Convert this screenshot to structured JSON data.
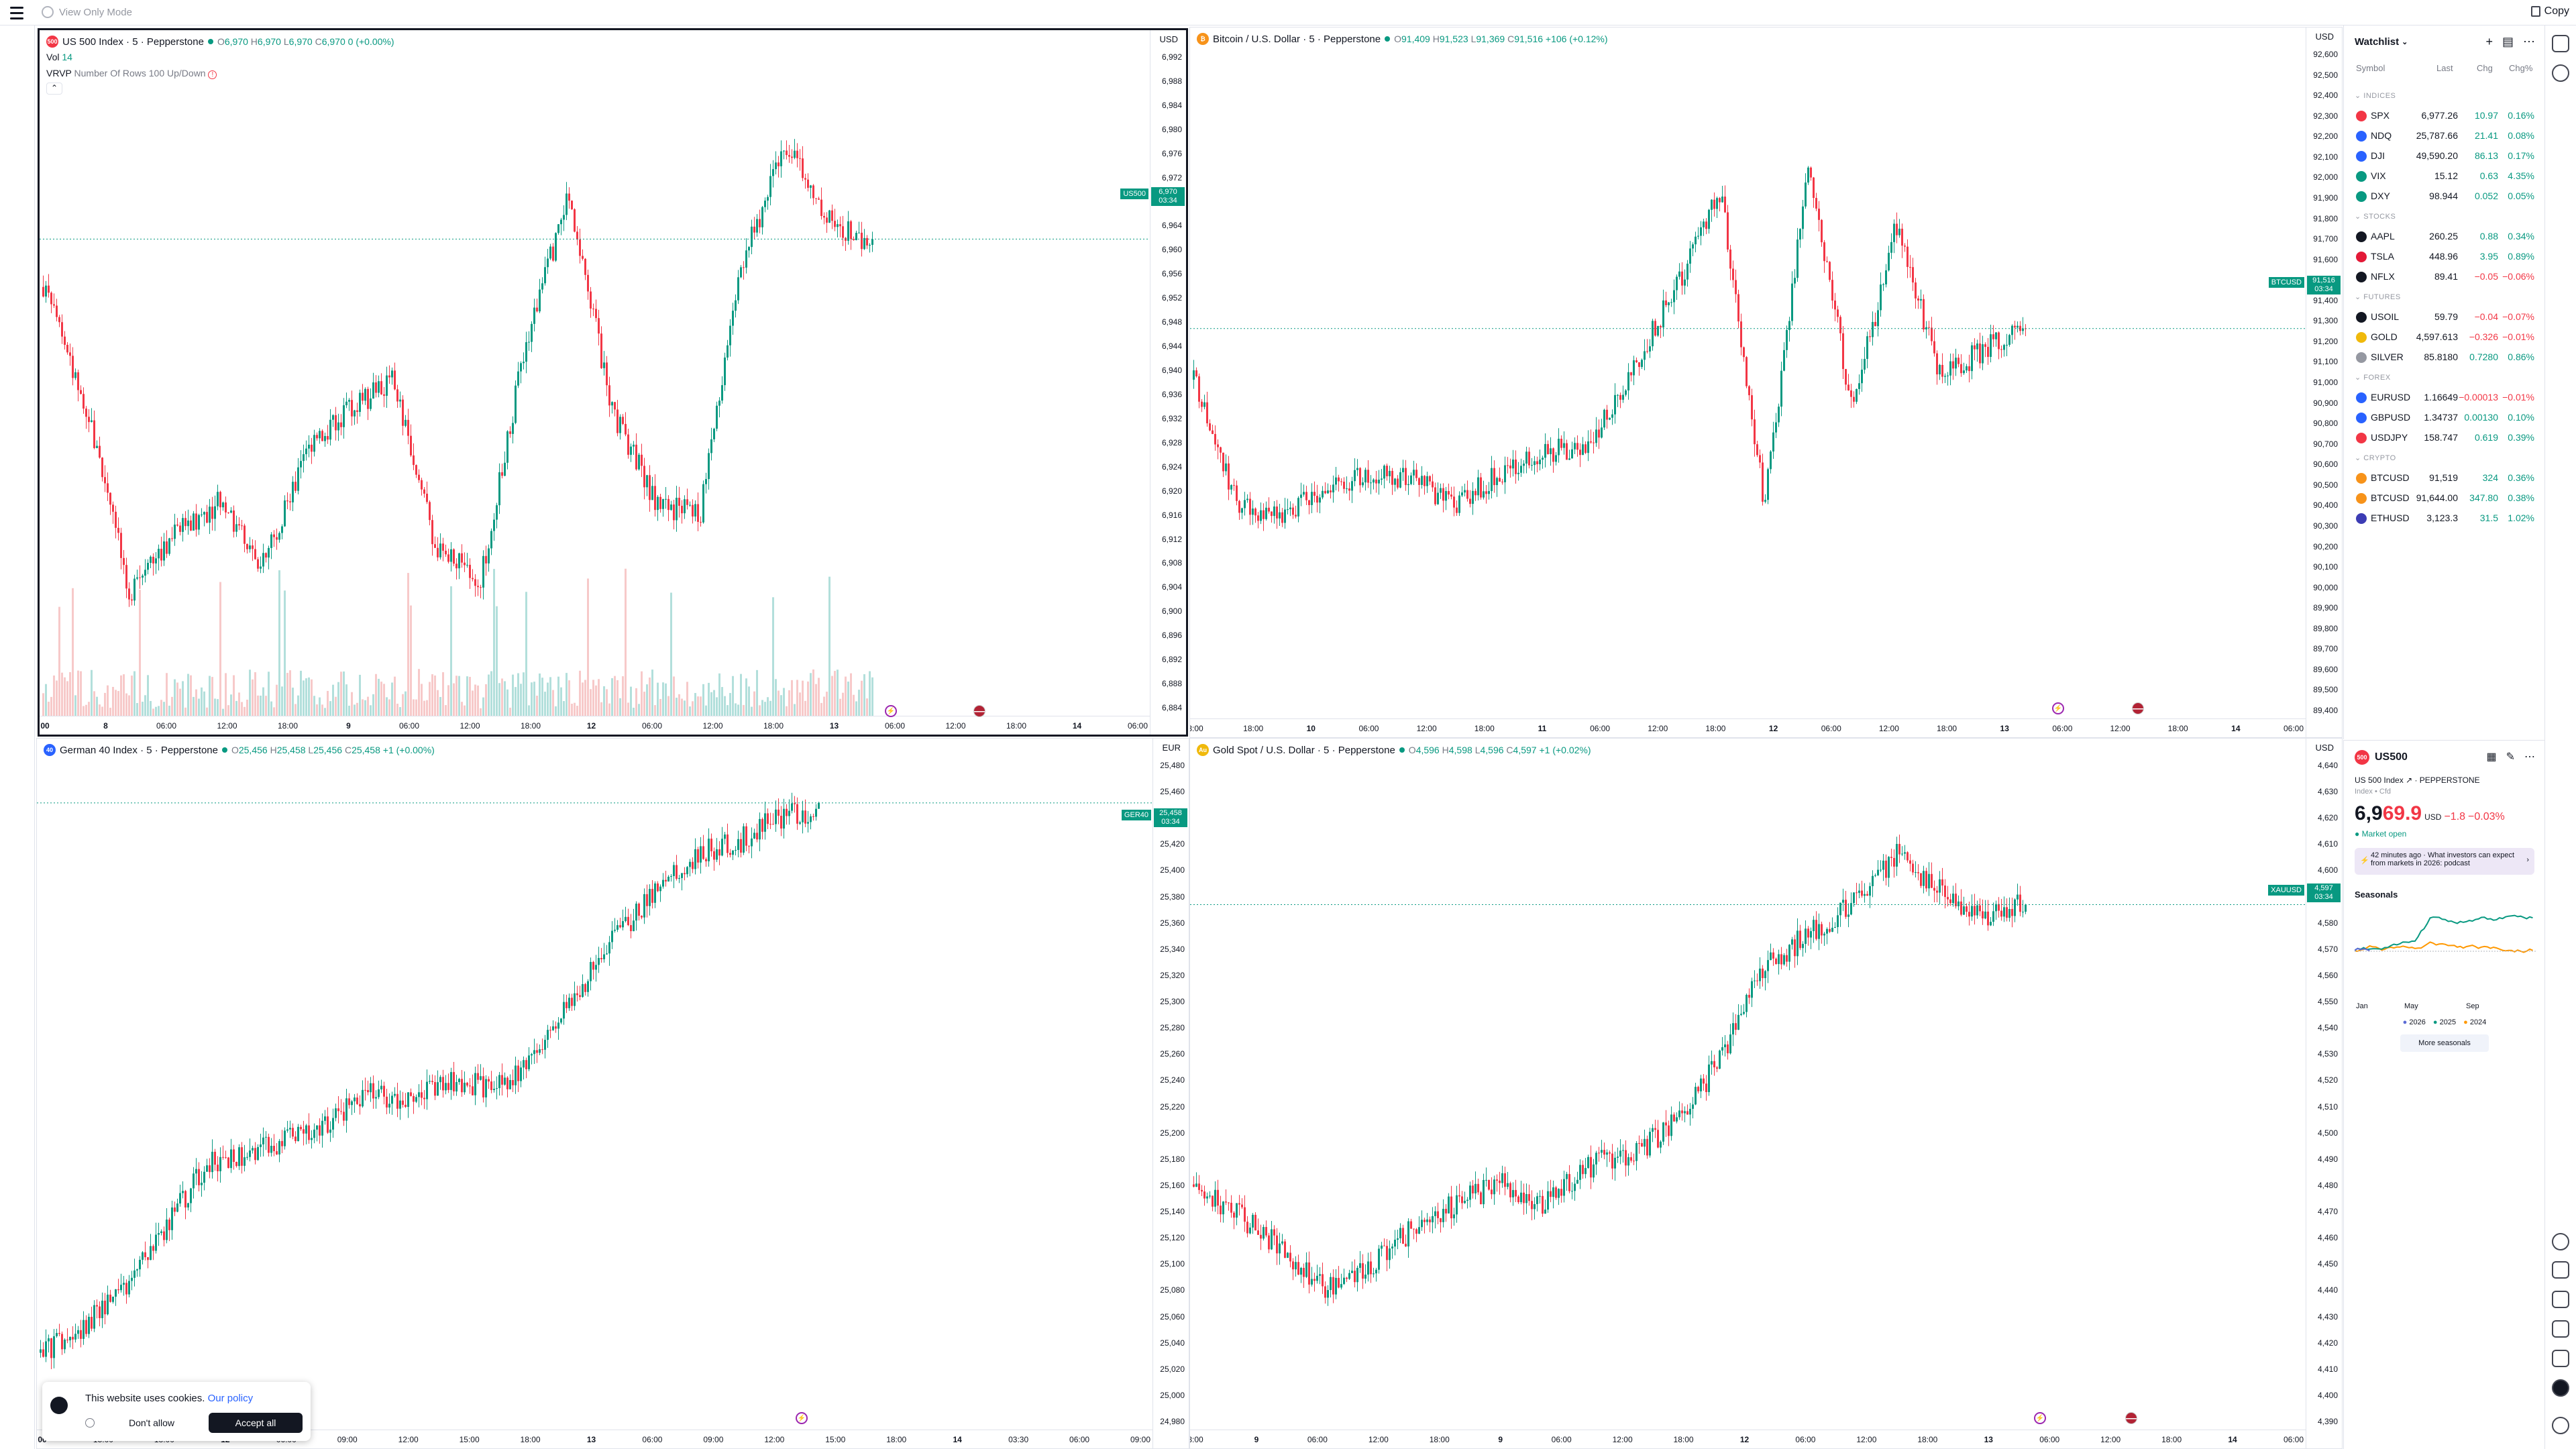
{
  "topbar": {
    "view_only": "View Only Mode",
    "copy": "Copy"
  },
  "panes": [
    {
      "id": "spx",
      "title": "US 500 Index · 5 · Pepperstone",
      "icon_label": "500",
      "icon_color": "#f23645",
      "ohlc": {
        "o": "6,970",
        "h": "6,970",
        "l": "6,970",
        "c": "6,970",
        "chg": "0 (+0.00%)"
      },
      "vol_label": "Vol",
      "vol_value": "14",
      "vrvp_label": "VRVP",
      "vrvp_text": "Number Of Rows 100 Up/Down",
      "currency": "USD",
      "price_ticks": [
        "6,992",
        "6,988",
        "6,984",
        "6,980",
        "6,976",
        "6,972",
        "6,968",
        "6,964",
        "6,960",
        "6,956",
        "6,952",
        "6,948",
        "6,944",
        "6,940",
        "6,936",
        "6,932",
        "6,928",
        "6,924",
        "6,920",
        "6,916",
        "6,912",
        "6,908",
        "6,904",
        "6,900",
        "6,896",
        "6,892",
        "6,888",
        "6,884"
      ],
      "time_ticks": [
        "00",
        "8",
        "06:00",
        "12:00",
        "18:00",
        "9",
        "06:00",
        "12:00",
        "18:00",
        "12",
        "06:00",
        "12:00",
        "18:00",
        "13",
        "06:00",
        "12:00",
        "18:00",
        "14",
        "06:00"
      ],
      "sym_tag": "US500",
      "price_tag": "6,970",
      "countdown": "03:34"
    },
    {
      "id": "btc",
      "title": "Bitcoin / U.S. Dollar · 5 · Pepperstone",
      "icon_label": "₿",
      "icon_color": "#f7931a",
      "ohlc": {
        "o": "91,409",
        "h": "91,523",
        "l": "91,369",
        "c": "91,516",
        "chg": "+106 (+0.12%)"
      },
      "currency": "USD",
      "price_ticks": [
        "92,600",
        "92,500",
        "92,400",
        "92,300",
        "92,200",
        "92,100",
        "92,000",
        "91,900",
        "91,800",
        "91,700",
        "91,600",
        "91,500",
        "91,400",
        "91,300",
        "91,200",
        "91,100",
        "91,000",
        "90,900",
        "90,800",
        "90,700",
        "90,600",
        "90,500",
        "90,400",
        "90,300",
        "90,200",
        "90,100",
        "90,000",
        "89,900",
        "89,800",
        "89,700",
        "89,600",
        "89,500",
        "89,400"
      ],
      "time_ticks": [
        "3:00",
        "18:00",
        "10",
        "06:00",
        "12:00",
        "18:00",
        "11",
        "06:00",
        "12:00",
        "18:00",
        "12",
        "06:00",
        "12:00",
        "18:00",
        "13",
        "06:00",
        "12:00",
        "18:00",
        "14",
        "06:00"
      ],
      "sym_tag": "BTCUSD",
      "price_tag": "91,516",
      "countdown": "03:34"
    },
    {
      "id": "dax",
      "title": "German 40 Index · 5 · Pepperstone",
      "icon_label": "40",
      "icon_color": "#2962ff",
      "ohlc": {
        "o": "25,456",
        "h": "25,458",
        "l": "25,456",
        "c": "25,458",
        "chg": "+1 (+0.00%)"
      },
      "currency": "EUR",
      "price_ticks": [
        "25,480",
        "25,460",
        "25,440",
        "25,420",
        "25,400",
        "25,380",
        "25,360",
        "25,340",
        "25,320",
        "25,300",
        "25,280",
        "25,260",
        "25,240",
        "25,220",
        "25,200",
        "25,180",
        "25,160",
        "25,140",
        "25,120",
        "25,100",
        "25,080",
        "25,060",
        "25,040",
        "25,020",
        "25,000",
        "24,980"
      ],
      "time_ticks": [
        "00",
        "15:00",
        "18:00",
        "12",
        "06:00",
        "09:00",
        "12:00",
        "15:00",
        "18:00",
        "13",
        "06:00",
        "09:00",
        "12:00",
        "15:00",
        "18:00",
        "14",
        "03:30",
        "06:00",
        "09:00"
      ],
      "sym_tag": "GER40",
      "price_tag": "25,458",
      "countdown": "03:34"
    },
    {
      "id": "gold",
      "title": "Gold Spot / U.S. Dollar · 5 · Pepperstone",
      "icon_label": "Au",
      "icon_color": "#f0b90b",
      "ohlc": {
        "o": "4,596",
        "h": "4,598",
        "l": "4,596",
        "c": "4,597",
        "chg": "+1 (+0.02%)"
      },
      "currency": "USD",
      "price_ticks": [
        "4,640",
        "4,630",
        "4,620",
        "4,610",
        "4,600",
        "4,590",
        "4,580",
        "4,570",
        "4,560",
        "4,550",
        "4,540",
        "4,530",
        "4,520",
        "4,510",
        "4,500",
        "4,490",
        "4,480",
        "4,470",
        "4,460",
        "4,450",
        "4,440",
        "4,430",
        "4,420",
        "4,410",
        "4,400",
        "4,390"
      ],
      "time_ticks": [
        "3:00",
        "9",
        "06:00",
        "12:00",
        "18:00",
        "9",
        "06:00",
        "12:00",
        "18:00",
        "12",
        "06:00",
        "12:00",
        "18:00",
        "13",
        "06:00",
        "12:00",
        "18:00",
        "14",
        "06:00"
      ],
      "sym_tag": "XAUUSD",
      "price_tag": "4,597",
      "countdown": "03:34"
    }
  ],
  "watchlist": {
    "title": "Watchlist",
    "columns": {
      "symbol": "Symbol",
      "last": "Last",
      "chg": "Chg",
      "chgp": "Chg%"
    },
    "sections": [
      {
        "name": "INDICES",
        "rows": [
          {
            "sym": "SPX",
            "last": "6,977.26",
            "chg": "10.97",
            "chgp": "0.16%",
            "dir": "up",
            "color": "#f23645"
          },
          {
            "sym": "NDQ",
            "last": "25,787.66",
            "chg": "21.41",
            "chgp": "0.08%",
            "dir": "up",
            "color": "#2962ff"
          },
          {
            "sym": "DJI",
            "last": "49,590.20",
            "chg": "86.13",
            "chgp": "0.17%",
            "dir": "up",
            "color": "#2962ff"
          },
          {
            "sym": "VIX",
            "last": "15.12",
            "chg": "0.63",
            "chgp": "4.35%",
            "dir": "up",
            "color": "#089981"
          },
          {
            "sym": "DXY",
            "last": "98.944",
            "chg": "0.052",
            "chgp": "0.05%",
            "dir": "up",
            "color": "#089981"
          }
        ]
      },
      {
        "name": "STOCKS",
        "rows": [
          {
            "sym": "AAPL",
            "last": "260.25",
            "chg": "0.88",
            "chgp": "0.34%",
            "dir": "up",
            "color": "#131722"
          },
          {
            "sym": "TSLA",
            "last": "448.96",
            "chg": "3.95",
            "chgp": "0.89%",
            "dir": "up",
            "color": "#e31937"
          },
          {
            "sym": "NFLX",
            "last": "89.41",
            "chg": "−0.05",
            "chgp": "−0.06%",
            "dir": "dn",
            "color": "#131722"
          }
        ]
      },
      {
        "name": "FUTURES",
        "rows": [
          {
            "sym": "USOIL",
            "last": "59.79",
            "chg": "−0.04",
            "chgp": "−0.07%",
            "dir": "dn",
            "color": "#131722"
          },
          {
            "sym": "GOLD",
            "last": "4,597.613",
            "chg": "−0.326",
            "chgp": "−0.01%",
            "dir": "dn",
            "color": "#f0b90b"
          },
          {
            "sym": "SILVER",
            "last": "85.8180",
            "chg": "0.7280",
            "chgp": "0.86%",
            "dir": "up",
            "color": "#9598a1"
          }
        ]
      },
      {
        "name": "FOREX",
        "rows": [
          {
            "sym": "EURUSD",
            "last": "1.16649",
            "chg": "−0.00013",
            "chgp": "−0.01%",
            "dir": "dn",
            "color": "#2962ff"
          },
          {
            "sym": "GBPUSD",
            "last": "1.34737",
            "chg": "0.00130",
            "chgp": "0.10%",
            "dir": "up",
            "color": "#2962ff"
          },
          {
            "sym": "USDJPY",
            "last": "158.747",
            "chg": "0.619",
            "chgp": "0.39%",
            "dir": "up",
            "color": "#f23645"
          }
        ]
      },
      {
        "name": "CRYPTO",
        "rows": [
          {
            "sym": "BTCUSD",
            "last": "91,519",
            "chg": "324",
            "chgp": "0.36%",
            "dir": "up",
            "color": "#f7931a"
          },
          {
            "sym": "BTCUSD",
            "last": "91,644.00",
            "chg": "347.80",
            "chgp": "0.38%",
            "dir": "up",
            "color": "#f7931a"
          },
          {
            "sym": "ETHUSD",
            "last": "3,123.3",
            "chg": "31.5",
            "chgp": "1.02%",
            "dir": "up",
            "color": "#3c3cb4"
          }
        ]
      }
    ]
  },
  "detail": {
    "symbol": "US500",
    "name": "US 500 Index",
    "exchange": "PEPPERSTONE",
    "type": "Index • Cfd",
    "price_main": "6,9",
    "price_hi": "69.9",
    "currency": "USD",
    "chg": "−1.8",
    "chgp": "−0.03%",
    "status": "Market open",
    "news_time": "42 minutes ago",
    "news_text": "What investors can expect from markets in 2026: podcast",
    "seasonals_title": "Seasonals",
    "months": [
      "Jan",
      "May",
      "Sep"
    ],
    "years": [
      "2026",
      "2025",
      "2024"
    ],
    "more": "More seasonals"
  },
  "cookie": {
    "text": "This website uses cookies.",
    "link": "Our policy",
    "deny": "Don't allow",
    "accept": "Accept all"
  },
  "colors": {
    "up": "#089981",
    "down": "#f23645",
    "vol_up": "#b2dfdb",
    "vol_down": "#f7c9c9"
  }
}
